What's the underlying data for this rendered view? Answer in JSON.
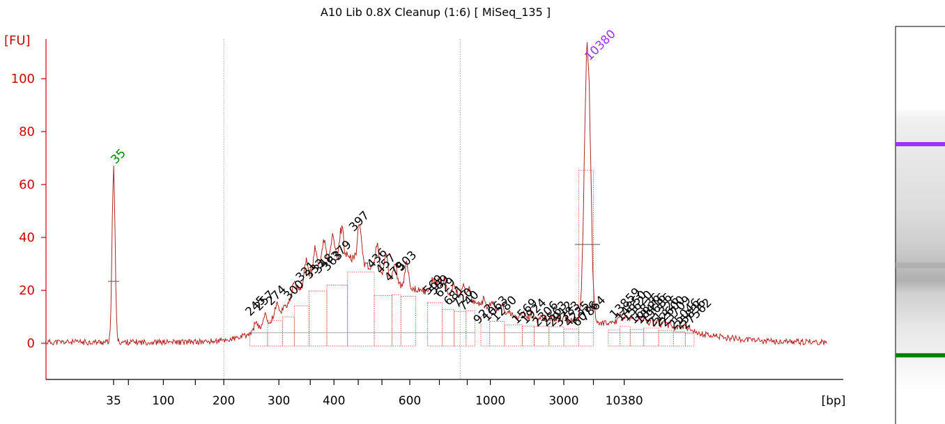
{
  "title": "A10 Lib 0.8X Cleanup (1:6)  [ MiSeq_135 ]",
  "chart_data": {
    "type": "line",
    "title": "A10 Lib 0.8X Cleanup (1:6)  [ MiSeq_135 ]",
    "ylabel": "[FU]",
    "xlabel": "[bp]",
    "ylim": [
      -13,
      111
    ],
    "yticks": [
      0,
      20,
      40,
      60,
      80,
      100
    ],
    "xticks": [
      {
        "label": "35",
        "pos": 0.0
      },
      {
        "label": "",
        "pos": 0.25
      },
      {
        "label": "100",
        "pos": 0.84
      },
      {
        "label": "",
        "pos": 1.38
      },
      {
        "label": "200",
        "pos": 1.86
      },
      {
        "label": "300",
        "pos": 2.79
      },
      {
        "label": "",
        "pos": 3.32
      },
      {
        "label": "400",
        "pos": 3.72
      },
      {
        "label": "",
        "pos": 4.13
      },
      {
        "label": "",
        "pos": 4.53
      },
      {
        "label": "600",
        "pos": 5.0
      },
      {
        "label": "",
        "pos": 5.5
      },
      {
        "label": "",
        "pos": 5.97
      },
      {
        "label": "1000",
        "pos": 6.36
      },
      {
        "label": "",
        "pos": 7.1
      },
      {
        "label": "3000",
        "pos": 7.6
      },
      {
        "label": "",
        "pos": 8.1
      },
      {
        "label": "10380",
        "pos": 8.62
      }
    ],
    "gridlines": [
      1.86,
      5.85
    ],
    "markers": [
      {
        "label": "35",
        "pos": 0.0,
        "value": 65.5,
        "color": "#008000"
      },
      {
        "label": "10380",
        "pos": 8.0,
        "value": 104.5,
        "color": "#9933ff"
      }
    ],
    "peaks": [
      {
        "label": "245",
        "pos": 2.4,
        "value": 9
      },
      {
        "label": "257",
        "pos": 2.55,
        "value": 11
      },
      {
        "label": "274",
        "pos": 2.75,
        "value": 13
      },
      {
        "label": "300",
        "pos": 3.05,
        "value": 15
      },
      {
        "label": "321",
        "pos": 3.25,
        "value": 22
      },
      {
        "label": "333",
        "pos": 3.4,
        "value": 23
      },
      {
        "label": "348",
        "pos": 3.55,
        "value": 25
      },
      {
        "label": "363",
        "pos": 3.7,
        "value": 26
      },
      {
        "label": "379",
        "pos": 3.85,
        "value": 30
      },
      {
        "label": "397",
        "pos": 4.15,
        "value": 41
      },
      {
        "label": "436",
        "pos": 4.45,
        "value": 27
      },
      {
        "label": "457",
        "pos": 4.6,
        "value": 25
      },
      {
        "label": "479",
        "pos": 4.75,
        "value": 22
      },
      {
        "label": "503",
        "pos": 4.95,
        "value": 26
      },
      {
        "label": "569",
        "pos": 5.4,
        "value": 17
      },
      {
        "label": "589",
        "pos": 5.5,
        "value": 17
      },
      {
        "label": "629",
        "pos": 5.6,
        "value": 16
      },
      {
        "label": "681",
        "pos": 5.75,
        "value": 13
      },
      {
        "label": "720",
        "pos": 5.9,
        "value": 12
      },
      {
        "label": "740",
        "pos": 6.0,
        "value": 11
      },
      {
        "label": "922",
        "pos": 6.25,
        "value": 6
      },
      {
        "label": "1063",
        "pos": 6.4,
        "value": 7
      },
      {
        "label": "1280",
        "pos": 6.55,
        "value": 7
      },
      {
        "label": "1569",
        "pos": 6.9,
        "value": 6
      },
      {
        "label": "1924",
        "pos": 7.05,
        "value": 6
      },
      {
        "label": "2306",
        "pos": 7.25,
        "value": 5
      },
      {
        "label": "2563",
        "pos": 7.4,
        "value": 5
      },
      {
        "label": "2912",
        "pos": 7.5,
        "value": 5
      },
      {
        "label": "3383",
        "pos": 7.62,
        "value": 5
      },
      {
        "label": "4235",
        "pos": 7.78,
        "value": 5
      },
      {
        "label": "6076",
        "pos": 7.92,
        "value": 5
      },
      {
        "label": "7864",
        "pos": 8.05,
        "value": 7
      },
      {
        "label": "13859",
        "pos": 8.55,
        "value": 8
      },
      {
        "label": "14850",
        "pos": 8.65,
        "value": 7
      },
      {
        "label": "15620",
        "pos": 8.75,
        "value": 7
      },
      {
        "label": "16836",
        "pos": 8.88,
        "value": 6
      },
      {
        "label": "18416",
        "pos": 8.98,
        "value": 6
      },
      {
        "label": "19686",
        "pos": 9.08,
        "value": 6
      },
      {
        "label": "21326",
        "pos": 9.2,
        "value": 5
      },
      {
        "label": "22600",
        "pos": 9.3,
        "value": 5
      },
      {
        "label": "23709",
        "pos": 9.4,
        "value": 5
      },
      {
        "label": "25046",
        "pos": 9.55,
        "value": 4
      },
      {
        "label": "25836",
        "pos": 9.65,
        "value": 4
      },
      {
        "label": "27562",
        "pos": 9.75,
        "value": 4
      }
    ]
  },
  "electropherogram": {
    "bands": [
      {
        "pos": 0.34,
        "color": "#9933ff"
      },
      {
        "pos": 0.838,
        "color": "#008000"
      }
    ]
  }
}
